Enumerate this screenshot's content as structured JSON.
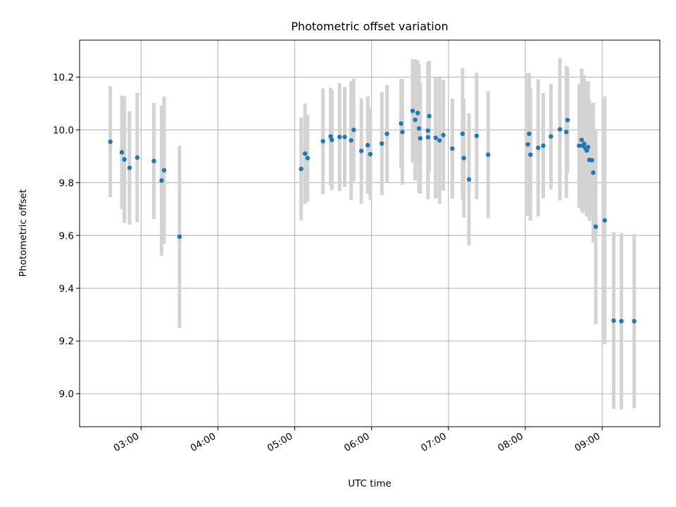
{
  "chart_data": {
    "type": "scatter",
    "title": "Photometric offset variation",
    "xlabel": "UTC time",
    "ylabel": "Photometric offset",
    "x_unit": "hours (UTC)",
    "xlim": [
      2.2,
      9.75
    ],
    "ylim": [
      8.875,
      10.34
    ],
    "xticks": [
      {
        "value": 3,
        "label": "03:00"
      },
      {
        "value": 4,
        "label": "04:00"
      },
      {
        "value": 5,
        "label": "05:00"
      },
      {
        "value": 6,
        "label": "06:00"
      },
      {
        "value": 7,
        "label": "07:00"
      },
      {
        "value": 8,
        "label": "08:00"
      },
      {
        "value": 9,
        "label": "09:00"
      }
    ],
    "yticks": [
      {
        "value": 9.0,
        "label": "9.0"
      },
      {
        "value": 9.2,
        "label": "9.2"
      },
      {
        "value": 9.4,
        "label": "9.4"
      },
      {
        "value": 9.6,
        "label": "9.6"
      },
      {
        "value": 9.8,
        "label": "9.8"
      },
      {
        "value": 10.0,
        "label": "10.0"
      },
      {
        "value": 10.2,
        "label": "10.2"
      }
    ],
    "grid": true,
    "legend": "none",
    "colors": {
      "point": "#1f77b4",
      "errorbar": "#d3d3d3",
      "grid": "#b0b0b0"
    },
    "series": [
      {
        "x": [
          "02:36",
          "02:45",
          "02:47",
          "02:51",
          "02:57",
          "03:10",
          "03:16",
          "03:18",
          "03:30",
          "05:05",
          "05:08",
          "05:10",
          "05:22",
          "05:28",
          "05:29",
          "05:35",
          "05:39",
          "05:44",
          "05:46",
          "05:52",
          "05:57",
          "05:59",
          "06:08",
          "06:12",
          "06:23",
          "06:24",
          "06:32",
          "06:34",
          "06:36",
          "06:37",
          "06:38",
          "06:44",
          "06:44",
          "06:45",
          "06:50",
          "06:53",
          "06:56",
          "07:03",
          "07:11",
          "07:12",
          "07:16",
          "07:22",
          "07:31",
          "08:02",
          "08:03",
          "08:04",
          "08:10",
          "08:14",
          "08:20",
          "08:27",
          "08:32",
          "08:33",
          "08:42",
          "08:44",
          "08:45",
          "08:46",
          "08:47",
          "08:48",
          "08:49",
          "08:50",
          "08:52",
          "08:53",
          "08:55",
          "09:02",
          "09:09",
          "09:15",
          "09:25"
        ],
        "y": [
          9.955,
          9.915,
          9.888,
          9.856,
          9.895,
          9.882,
          9.808,
          9.847,
          9.595,
          9.852,
          9.91,
          9.893,
          9.957,
          9.975,
          9.962,
          9.973,
          9.973,
          9.96,
          10.0,
          9.92,
          9.942,
          9.908,
          9.948,
          9.985,
          10.024,
          9.992,
          10.072,
          10.038,
          10.064,
          10.005,
          9.968,
          9.997,
          9.972,
          10.052,
          9.97,
          9.96,
          9.98,
          9.929,
          9.985,
          9.893,
          9.812,
          9.977,
          9.906,
          9.945,
          9.985,
          9.906,
          9.932,
          9.94,
          9.975,
          10.002,
          9.992,
          10.037,
          9.94,
          9.962,
          9.94,
          9.947,
          9.93,
          9.922,
          9.935,
          9.886,
          9.885,
          9.838,
          9.633,
          9.657,
          9.277,
          9.275,
          9.275
        ],
        "yerr": [
          0.21,
          0.215,
          0.24,
          0.215,
          0.245,
          0.22,
          0.285,
          0.28,
          0.345,
          0.195,
          0.19,
          0.165,
          0.2,
          0.185,
          0.19,
          0.205,
          0.19,
          0.225,
          0.195,
          0.2,
          0.185,
          0.175,
          0.195,
          0.185,
          0.17,
          0.2,
          0.195,
          0.23,
          0.2,
          0.245,
          0.21,
          0.26,
          0.2,
          0.21,
          0.23,
          0.24,
          0.21,
          0.19,
          0.25,
          0.225,
          0.25,
          0.24,
          0.24,
          0.27,
          0.23,
          0.25,
          0.26,
          0.2,
          0.2,
          0.27,
          0.25,
          0.2,
          0.235,
          0.27,
          0.255,
          0.26,
          0.24,
          0.25,
          0.25,
          0.23,
          0.21,
          0.265,
          0.37,
          0.47,
          0.335,
          0.335,
          0.33
        ]
      }
    ]
  }
}
